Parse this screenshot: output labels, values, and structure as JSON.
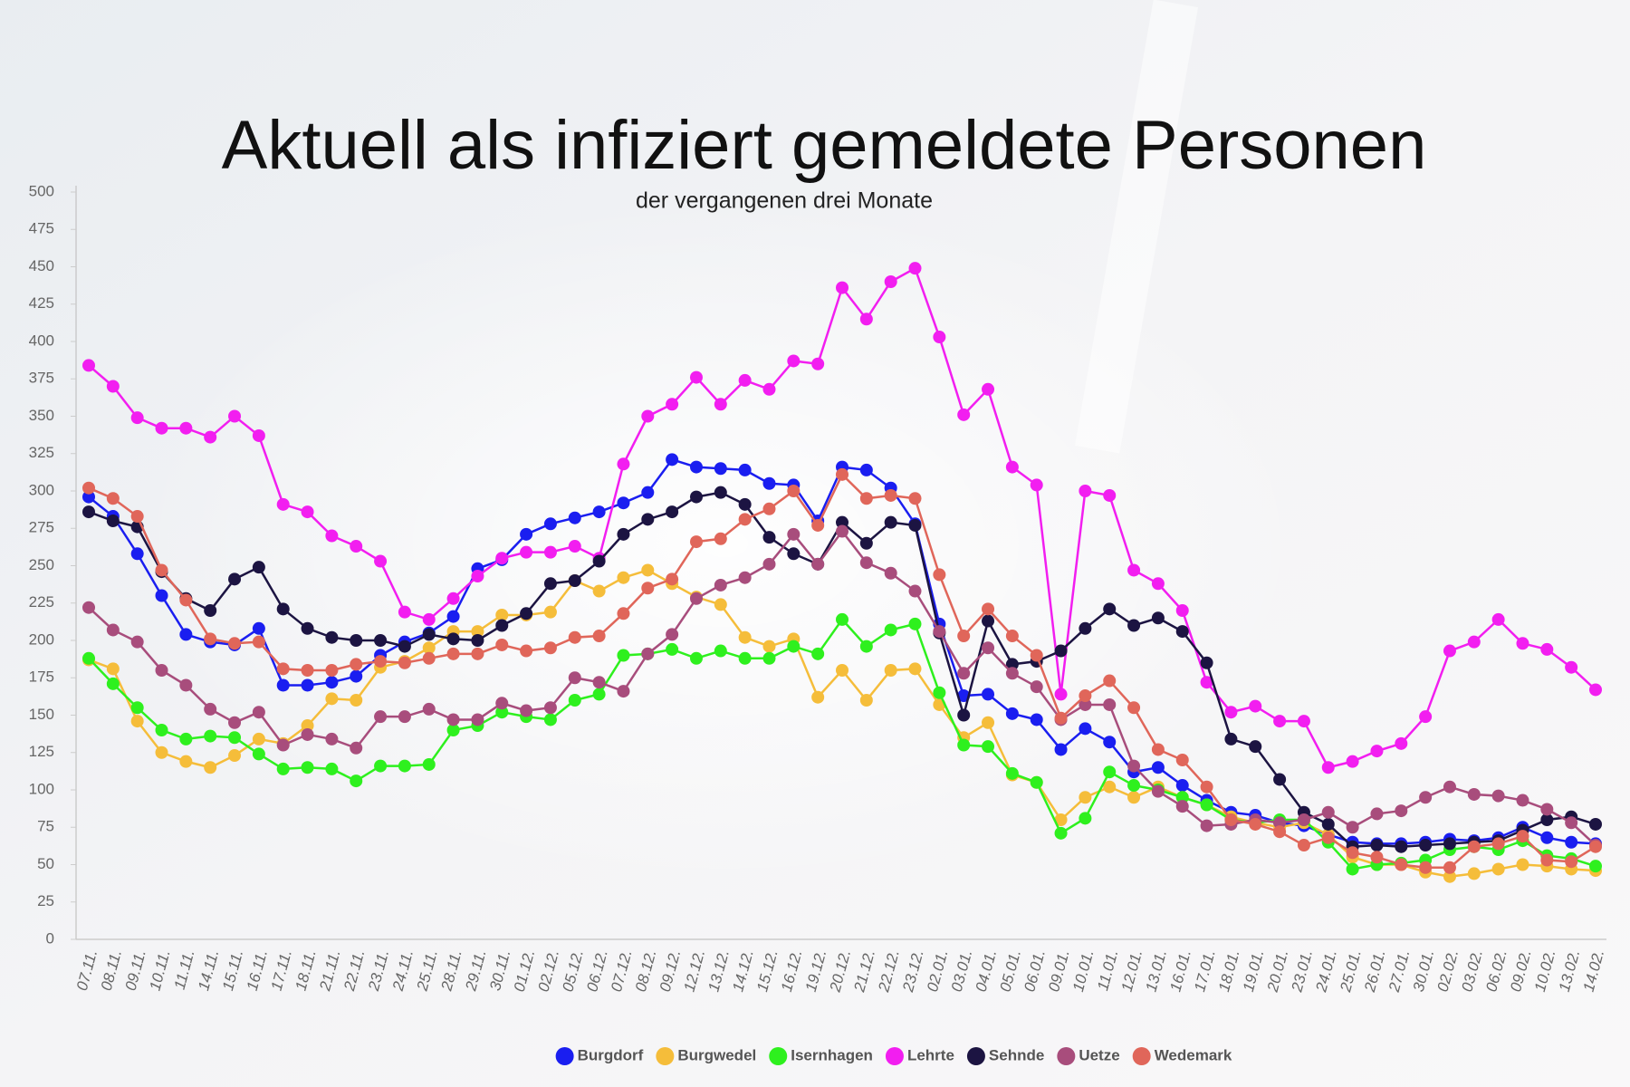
{
  "chart_data": {
    "type": "line",
    "title": "Aktuell als infiziert gemeldete Personen",
    "subtitle": "der vergangenen drei Monate",
    "categories": [
      "07.11.",
      "08.11.",
      "09.11.",
      "10.11.",
      "11.11.",
      "14.11.",
      "15.11.",
      "16.11.",
      "17.11.",
      "18.11.",
      "21.11.",
      "22.11.",
      "23.11.",
      "24.11.",
      "25.11.",
      "28.11.",
      "29.11.",
      "30.11.",
      "01.12.",
      "02.12.",
      "05.12.",
      "06.12.",
      "07.12.",
      "08.12.",
      "09.12.",
      "12.12.",
      "13.12.",
      "14.12.",
      "15.12.",
      "16.12.",
      "19.12.",
      "20.12.",
      "21.12.",
      "22.12.",
      "23.12.",
      "02.01.",
      "03.01.",
      "04.01.",
      "05.01.",
      "06.01.",
      "09.01.",
      "10.01.",
      "11.01.",
      "12.01.",
      "13.01.",
      "16.01.",
      "17.01.",
      "18.01.",
      "19.01.",
      "20.01.",
      "23.01.",
      "24.01.",
      "25.01.",
      "26.01.",
      "27.01.",
      "30.01.",
      "02.02.",
      "03.02.",
      "06.02.",
      "09.02.",
      "10.02.",
      "13.02.",
      "14.02."
    ],
    "series": [
      {
        "name": "Burgdorf",
        "color": "#1a1ef0",
        "values": [
          296,
          283,
          258,
          230,
          204,
          199,
          197,
          208,
          170,
          170,
          172,
          176,
          190,
          199,
          205,
          216,
          248,
          254,
          271,
          278,
          282,
          286,
          292,
          299,
          321,
          316,
          315,
          314,
          305,
          304,
          280,
          316,
          314,
          302,
          278,
          211,
          163,
          164,
          151,
          147,
          127,
          141,
          132,
          112,
          115,
          103,
          93,
          85,
          83,
          78,
          76,
          70,
          65,
          64,
          64,
          65,
          67,
          66,
          68,
          75,
          68,
          65,
          64
        ]
      },
      {
        "name": "Burgwedel",
        "color": "#f5bd3a",
        "values": [
          187,
          181,
          146,
          125,
          119,
          115,
          123,
          134,
          131,
          143,
          161,
          160,
          182,
          186,
          195,
          206,
          206,
          217,
          217,
          219,
          240,
          233,
          242,
          247,
          238,
          229,
          224,
          202,
          196,
          201,
          162,
          180,
          160,
          180,
          181,
          157,
          135,
          145,
          110,
          105,
          80,
          95,
          102,
          95,
          102,
          95,
          90,
          82,
          78,
          75,
          78,
          70,
          55,
          50,
          50,
          45,
          42,
          44,
          47,
          50,
          49,
          47,
          46
        ]
      },
      {
        "name": "Isernhagen",
        "color": "#2ef01e",
        "values": [
          188,
          171,
          155,
          140,
          134,
          136,
          135,
          124,
          114,
          115,
          114,
          106,
          116,
          116,
          117,
          140,
          143,
          152,
          149,
          147,
          160,
          164,
          190,
          191,
          194,
          188,
          193,
          188,
          188,
          196,
          191,
          214,
          196,
          207,
          211,
          165,
          130,
          129,
          111,
          105,
          71,
          81,
          112,
          103,
          100,
          95,
          90,
          80,
          78,
          80,
          80,
          65,
          47,
          50,
          51,
          53,
          60,
          62,
          60,
          66,
          56,
          54,
          49
        ]
      },
      {
        "name": "Lehrte",
        "color": "#f21ef0",
        "values": [
          384,
          370,
          349,
          342,
          342,
          336,
          350,
          337,
          291,
          286,
          270,
          263,
          253,
          219,
          214,
          228,
          243,
          255,
          259,
          259,
          263,
          255,
          318,
          350,
          358,
          376,
          358,
          374,
          368,
          387,
          385,
          436,
          415,
          440,
          449,
          403,
          351,
          368,
          316,
          304,
          164,
          300,
          297,
          247,
          238,
          220,
          172,
          152,
          156,
          146,
          146,
          115,
          119,
          126,
          131,
          149,
          193,
          199,
          214,
          198,
          194,
          182,
          167
        ]
      },
      {
        "name": "Sehnde",
        "color": "#1c1442",
        "values": [
          286,
          280,
          276,
          246,
          228,
          220,
          241,
          249,
          221,
          208,
          202,
          200,
          200,
          196,
          204,
          201,
          200,
          210,
          218,
          238,
          240,
          253,
          271,
          281,
          286,
          296,
          299,
          291,
          269,
          258,
          251,
          279,
          265,
          279,
          277,
          205,
          150,
          213,
          184,
          186,
          193,
          208,
          221,
          210,
          215,
          206,
          185,
          134,
          129,
          107,
          85,
          77,
          62,
          63,
          62,
          63,
          64,
          65,
          66,
          73,
          80,
          82,
          77
        ]
      },
      {
        "name": "Uetze",
        "color": "#a84d7c",
        "values": [
          222,
          207,
          199,
          180,
          170,
          154,
          145,
          152,
          130,
          137,
          134,
          128,
          149,
          149,
          154,
          147,
          147,
          158,
          153,
          155,
          175,
          172,
          166,
          191,
          204,
          228,
          237,
          242,
          251,
          271,
          251,
          273,
          252,
          245,
          233,
          206,
          178,
          195,
          178,
          169,
          147,
          157,
          157,
          116,
          99,
          89,
          76,
          77,
          80,
          78,
          80,
          85,
          75,
          84,
          86,
          95,
          102,
          97,
          96,
          93,
          87,
          78,
          63
        ]
      },
      {
        "name": "Wedemark",
        "color": "#e0665a",
        "values": [
          302,
          295,
          283,
          247,
          227,
          201,
          198,
          199,
          181,
          180,
          180,
          184,
          186,
          185,
          188,
          191,
          191,
          197,
          193,
          195,
          202,
          203,
          218,
          235,
          241,
          266,
          268,
          281,
          288,
          300,
          277,
          311,
          295,
          297,
          295,
          244,
          203,
          221,
          203,
          190,
          148,
          163,
          173,
          155,
          127,
          120,
          102,
          80,
          77,
          72,
          63,
          68,
          58,
          55,
          50,
          48,
          48,
          62,
          64,
          69,
          53,
          52,
          62
        ]
      }
    ],
    "ylim": [
      0,
      500
    ],
    "yticks": [
      0,
      25,
      50,
      75,
      100,
      125,
      150,
      175,
      200,
      225,
      250,
      275,
      300,
      325,
      350,
      375,
      400,
      425,
      450,
      475,
      500
    ],
    "grid": false,
    "legend": "bottom"
  }
}
